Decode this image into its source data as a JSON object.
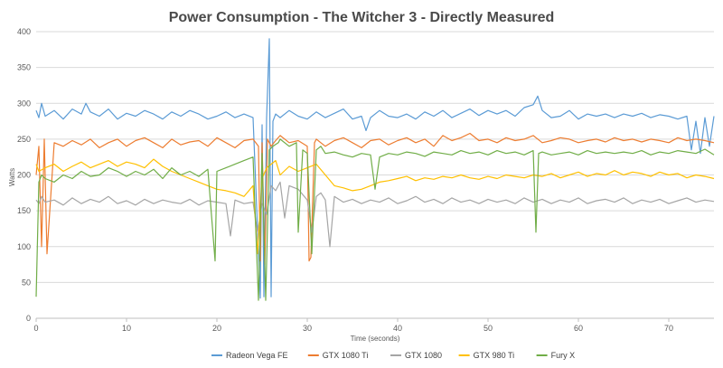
{
  "chart_data": {
    "type": "line",
    "title": "Power Consumption - The Witcher 3 - Directly Measured",
    "xlabel": "Time (seconds)",
    "ylabel": "Watts",
    "xlim": [
      0,
      75
    ],
    "ylim": [
      0,
      400
    ],
    "x_ticks": [
      0,
      10,
      20,
      30,
      40,
      50,
      60,
      70
    ],
    "y_ticks": [
      0,
      50,
      100,
      150,
      200,
      250,
      300,
      350,
      400
    ],
    "grid": true,
    "legend_position": "bottom",
    "series": [
      {
        "name": "Radeon Vega FE",
        "color": "#5b9bd5",
        "x": [
          0,
          0.3,
          0.6,
          1,
          2,
          3,
          4,
          5,
          5.5,
          6,
          7,
          8,
          9,
          10,
          11,
          12,
          13,
          14,
          15,
          16,
          17,
          18,
          19,
          20,
          21,
          22,
          23,
          24,
          24.8,
          25,
          25.2,
          25.5,
          25.8,
          26,
          26.2,
          26.5,
          27,
          28,
          29,
          30,
          31,
          32,
          33,
          34,
          35,
          36,
          36.5,
          37,
          38,
          39,
          40,
          41,
          42,
          43,
          44,
          45,
          46,
          47,
          48,
          49,
          50,
          51,
          52,
          53,
          54,
          55,
          55.5,
          56,
          57,
          58,
          59,
          60,
          61,
          62,
          63,
          64,
          65,
          66,
          67,
          68,
          69,
          70,
          71,
          72,
          72.5,
          73,
          73.5,
          74,
          74.5,
          75
        ],
        "values": [
          290,
          280,
          300,
          282,
          290,
          278,
          292,
          285,
          300,
          288,
          282,
          292,
          278,
          286,
          282,
          290,
          285,
          278,
          288,
          282,
          290,
          285,
          278,
          282,
          288,
          280,
          285,
          280,
          28,
          270,
          30,
          280,
          390,
          30,
          275,
          285,
          280,
          290,
          282,
          278,
          288,
          280,
          286,
          292,
          278,
          282,
          262,
          280,
          290,
          282,
          280,
          285,
          278,
          288,
          282,
          290,
          280,
          286,
          292,
          283,
          290,
          285,
          290,
          282,
          294,
          298,
          310,
          290,
          280,
          282,
          290,
          278,
          285,
          282,
          285,
          280,
          285,
          282,
          286,
          280,
          284,
          282,
          278,
          282,
          235,
          275,
          230,
          280,
          240,
          282
        ]
      },
      {
        "name": "GTX 1080 Ti",
        "color": "#ed7d31",
        "x": [
          0,
          0.3,
          0.6,
          0.9,
          1.2,
          2,
          3,
          4,
          5,
          6,
          7,
          8,
          9,
          10,
          11,
          12,
          13,
          14,
          15,
          16,
          17,
          18,
          19,
          20,
          21,
          22,
          23,
          24,
          24.6,
          24.8,
          25,
          25.3,
          25.6,
          26,
          26.5,
          27,
          28,
          29,
          30,
          30.2,
          30.4,
          30.8,
          31,
          32,
          33,
          34,
          35,
          36,
          37,
          38,
          39,
          40,
          41,
          42,
          43,
          44,
          45,
          46,
          47,
          48,
          49,
          50,
          51,
          52,
          53,
          54,
          55,
          56,
          57,
          58,
          59,
          60,
          61,
          62,
          63,
          64,
          65,
          66,
          67,
          68,
          69,
          70,
          71,
          72,
          73,
          74,
          75
        ],
        "values": [
          200,
          240,
          100,
          250,
          90,
          245,
          240,
          248,
          242,
          250,
          238,
          245,
          250,
          240,
          248,
          252,
          245,
          238,
          250,
          242,
          246,
          248,
          240,
          252,
          245,
          238,
          248,
          250,
          240,
          80,
          245,
          75,
          250,
          240,
          248,
          255,
          245,
          248,
          240,
          80,
          85,
          245,
          250,
          240,
          248,
          252,
          245,
          238,
          248,
          250,
          242,
          248,
          252,
          245,
          250,
          240,
          255,
          248,
          252,
          258,
          248,
          250,
          245,
          252,
          248,
          250,
          255,
          245,
          248,
          252,
          250,
          245,
          248,
          250,
          246,
          252,
          248,
          250,
          246,
          250,
          248,
          245,
          252,
          248,
          250,
          248,
          245
        ]
      },
      {
        "name": "GTX 1080",
        "color": "#a5a5a5",
        "x": [
          0,
          0.3,
          0.6,
          1,
          2,
          3,
          4,
          5,
          6,
          7,
          8,
          9,
          10,
          11,
          12,
          13,
          14,
          15,
          16,
          17,
          18,
          19,
          20,
          21,
          21.5,
          22,
          23,
          24,
          24.5,
          25,
          25.5,
          26,
          26.5,
          27,
          27.5,
          28,
          29,
          30,
          30.5,
          31,
          31.5,
          32,
          32.5,
          33,
          34,
          35,
          36,
          37,
          38,
          39,
          40,
          41,
          42,
          43,
          44,
          45,
          46,
          47,
          48,
          49,
          50,
          51,
          52,
          53,
          54,
          55,
          56,
          57,
          58,
          59,
          60,
          61,
          62,
          63,
          64,
          65,
          66,
          67,
          68,
          69,
          70,
          71,
          72,
          73,
          74,
          75
        ],
        "values": [
          165,
          160,
          170,
          162,
          165,
          158,
          168,
          160,
          166,
          162,
          170,
          160,
          164,
          158,
          166,
          160,
          165,
          162,
          160,
          166,
          158,
          164,
          162,
          160,
          115,
          165,
          160,
          162,
          120,
          160,
          145,
          185,
          178,
          190,
          140,
          185,
          180,
          165,
          120,
          170,
          175,
          165,
          100,
          170,
          162,
          166,
          160,
          165,
          162,
          168,
          160,
          164,
          170,
          162,
          166,
          160,
          168,
          162,
          165,
          160,
          166,
          162,
          165,
          160,
          168,
          162,
          166,
          160,
          165,
          162,
          168,
          160,
          164,
          166,
          162,
          168,
          160,
          165,
          162,
          166,
          160,
          164,
          168,
          162,
          165,
          163
        ]
      },
      {
        "name": "GTX 980 Ti",
        "color": "#ffc000",
        "x": [
          0,
          0.3,
          1,
          2,
          3,
          4,
          5,
          6,
          7,
          8,
          9,
          10,
          11,
          12,
          13,
          14,
          15,
          16,
          17,
          18,
          19,
          20,
          21,
          22,
          23,
          24,
          24.5,
          25,
          25.5,
          26,
          26.5,
          27,
          28,
          29,
          30,
          31,
          32,
          33,
          34,
          35,
          36,
          37,
          38,
          39,
          40,
          41,
          42,
          43,
          44,
          45,
          46,
          47,
          48,
          49,
          50,
          51,
          52,
          53,
          54,
          55,
          56,
          57,
          58,
          59,
          60,
          61,
          62,
          63,
          64,
          65,
          66,
          67,
          68,
          69,
          70,
          71,
          72,
          73,
          74,
          75
        ],
        "values": [
          215,
          205,
          210,
          215,
          205,
          212,
          218,
          210,
          215,
          220,
          212,
          218,
          215,
          210,
          222,
          212,
          205,
          200,
          195,
          190,
          185,
          180,
          178,
          175,
          170,
          185,
          90,
          195,
          210,
          215,
          220,
          200,
          212,
          205,
          210,
          215,
          200,
          185,
          182,
          178,
          180,
          185,
          190,
          192,
          195,
          198,
          192,
          196,
          194,
          198,
          196,
          200,
          196,
          194,
          198,
          195,
          200,
          198,
          196,
          200,
          198,
          202,
          196,
          200,
          204,
          198,
          202,
          200,
          206,
          200,
          204,
          202,
          198,
          204,
          200,
          202,
          196,
          200,
          198,
          195
        ]
      },
      {
        "name": "Fury X",
        "color": "#70ad47",
        "x": [
          0,
          0.3,
          0.6,
          1,
          2,
          3,
          4,
          5,
          6,
          7,
          8,
          9,
          10,
          11,
          12,
          13,
          14,
          15,
          16,
          17,
          18,
          19,
          19.8,
          20,
          21,
          22,
          23,
          24,
          24.6,
          25,
          25.4,
          25.8,
          26.2,
          26.8,
          27,
          28,
          28.8,
          29,
          29.5,
          30,
          30.5,
          31,
          31.5,
          32,
          33,
          34,
          35,
          36,
          37,
          37.5,
          38,
          39,
          40,
          41,
          42,
          43,
          44,
          45,
          46,
          47,
          48,
          49,
          50,
          51,
          52,
          53,
          54,
          55,
          55.3,
          55.6,
          56,
          57,
          58,
          59,
          60,
          61,
          62,
          63,
          64,
          65,
          66,
          67,
          68,
          69,
          70,
          71,
          72,
          73,
          74,
          75
        ],
        "values": [
          30,
          190,
          200,
          195,
          190,
          200,
          195,
          205,
          198,
          200,
          210,
          205,
          198,
          205,
          200,
          208,
          195,
          210,
          200,
          205,
          198,
          208,
          80,
          205,
          210,
          215,
          220,
          225,
          25,
          230,
          25,
          235,
          240,
          245,
          250,
          240,
          245,
          120,
          235,
          230,
          90,
          235,
          240,
          230,
          232,
          228,
          225,
          230,
          228,
          180,
          225,
          230,
          228,
          232,
          230,
          226,
          232,
          230,
          228,
          234,
          230,
          232,
          228,
          234,
          230,
          232,
          228,
          234,
          120,
          230,
          232,
          228,
          230,
          232,
          228,
          234,
          230,
          232,
          230,
          232,
          230,
          234,
          228,
          232,
          230,
          234,
          232,
          230,
          236,
          228
        ]
      }
    ]
  }
}
